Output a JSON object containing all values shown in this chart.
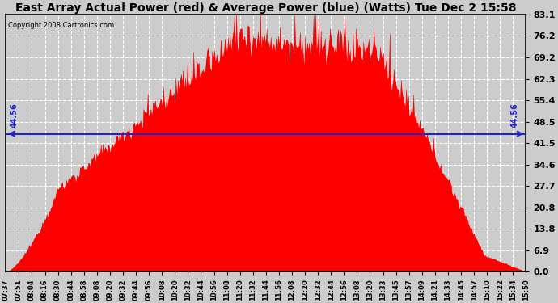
{
  "title": "East Array Actual Power (red) & Average Power (blue) (Watts) Tue Dec 2 15:58",
  "copyright": "Copyright 2008 Cartronics.com",
  "avg_power": 44.56,
  "yticks": [
    0.0,
    6.9,
    13.8,
    20.8,
    27.7,
    34.6,
    41.5,
    48.5,
    55.4,
    62.3,
    69.2,
    76.2,
    83.1
  ],
  "ymax": 83.1,
  "ymin": 0.0,
  "bar_color": "#FF0000",
  "line_color": "#2222CC",
  "background_color": "#CCCCCC",
  "plot_bg_color": "#CCCCCC",
  "grid_color": "#FFFFFF",
  "title_fontsize": 10,
  "xtick_labels": [
    "07:37",
    "07:51",
    "08:04",
    "08:16",
    "08:30",
    "08:44",
    "08:58",
    "09:08",
    "09:20",
    "09:32",
    "09:44",
    "09:56",
    "10:08",
    "10:20",
    "10:32",
    "10:44",
    "10:56",
    "11:08",
    "11:20",
    "11:32",
    "11:44",
    "11:56",
    "12:08",
    "12:20",
    "12:32",
    "12:44",
    "12:56",
    "13:08",
    "13:20",
    "13:33",
    "13:45",
    "13:57",
    "14:09",
    "14:21",
    "14:33",
    "14:45",
    "14:57",
    "15:10",
    "15:22",
    "15:34",
    "15:50"
  ]
}
